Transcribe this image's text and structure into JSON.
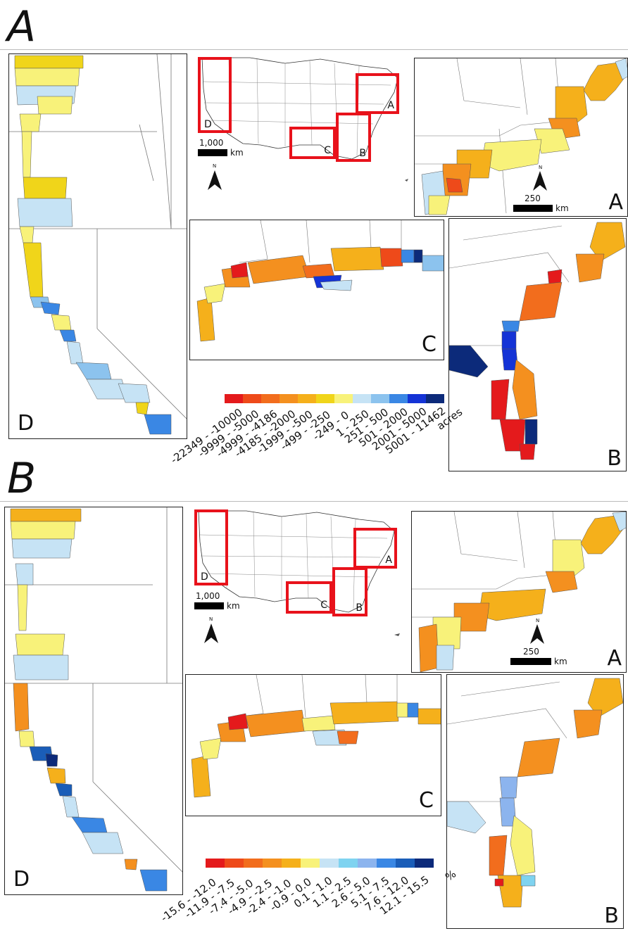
{
  "figures": [
    {
      "letter": "A",
      "overview": {
        "scale_value": "1,000",
        "scale_unit": "km",
        "north": "N",
        "boxes": [
          "A",
          "B",
          "C",
          "D"
        ]
      },
      "insetA": {
        "label": "A",
        "scale_value": "250",
        "scale_unit": "km",
        "north": "N"
      },
      "insetB": {
        "label": "B"
      },
      "insetC": {
        "label": "C"
      },
      "insetD": {
        "label": "D"
      },
      "legend": {
        "colors": [
          "#e41a1c",
          "#ee4a1a",
          "#f26d1d",
          "#f4901f",
          "#f5b01b",
          "#f0d51a",
          "#f8f27a",
          "#c6e3f5",
          "#8cc3ee",
          "#3a87e4",
          "#1433d6",
          "#0c2a7a"
        ],
        "labels": [
          "-22349 - -10000",
          "-9999 - -5000",
          "-4999 - -4186",
          "-4185 - -2000",
          "-1999 - -500",
          "-499 - -250",
          "-249 - 0",
          "1 - 250",
          "251 - 500",
          "501 - 2000",
          "2001 - 5000",
          "5001 - 11462",
          "acres"
        ]
      }
    },
    {
      "letter": "B",
      "overview": {
        "scale_value": "1,000",
        "scale_unit": "km",
        "north": "N",
        "boxes": [
          "A",
          "B",
          "C",
          "D"
        ]
      },
      "insetA": {
        "label": "A",
        "scale_value": "250",
        "scale_unit": "km",
        "north": "N"
      },
      "insetB": {
        "label": "B"
      },
      "insetC": {
        "label": "C"
      },
      "insetD": {
        "label": "D"
      },
      "legend": {
        "colors": [
          "#e41a1c",
          "#ee4a1a",
          "#f26d1d",
          "#f4901f",
          "#f5b01b",
          "#f8f27a",
          "#c6e3f5",
          "#7fd3f0",
          "#8cb4ee",
          "#3a87e4",
          "#1a5db8",
          "#0c2a7a"
        ],
        "labels": [
          "-15.6 - -12.0",
          "-11.9 - -7.5",
          "-7.4 - -5.0",
          "-4.9 - -2.5",
          "-2.4 - -1.0",
          "-0.9 - 0.0",
          "0.1 - 1.0",
          "1.1 - 2.5",
          "2.6 - 5.0",
          "5.1 - 7.5",
          "7.6 - 12.0",
          "12.1 - 15.5",
          "%"
        ]
      }
    }
  ]
}
